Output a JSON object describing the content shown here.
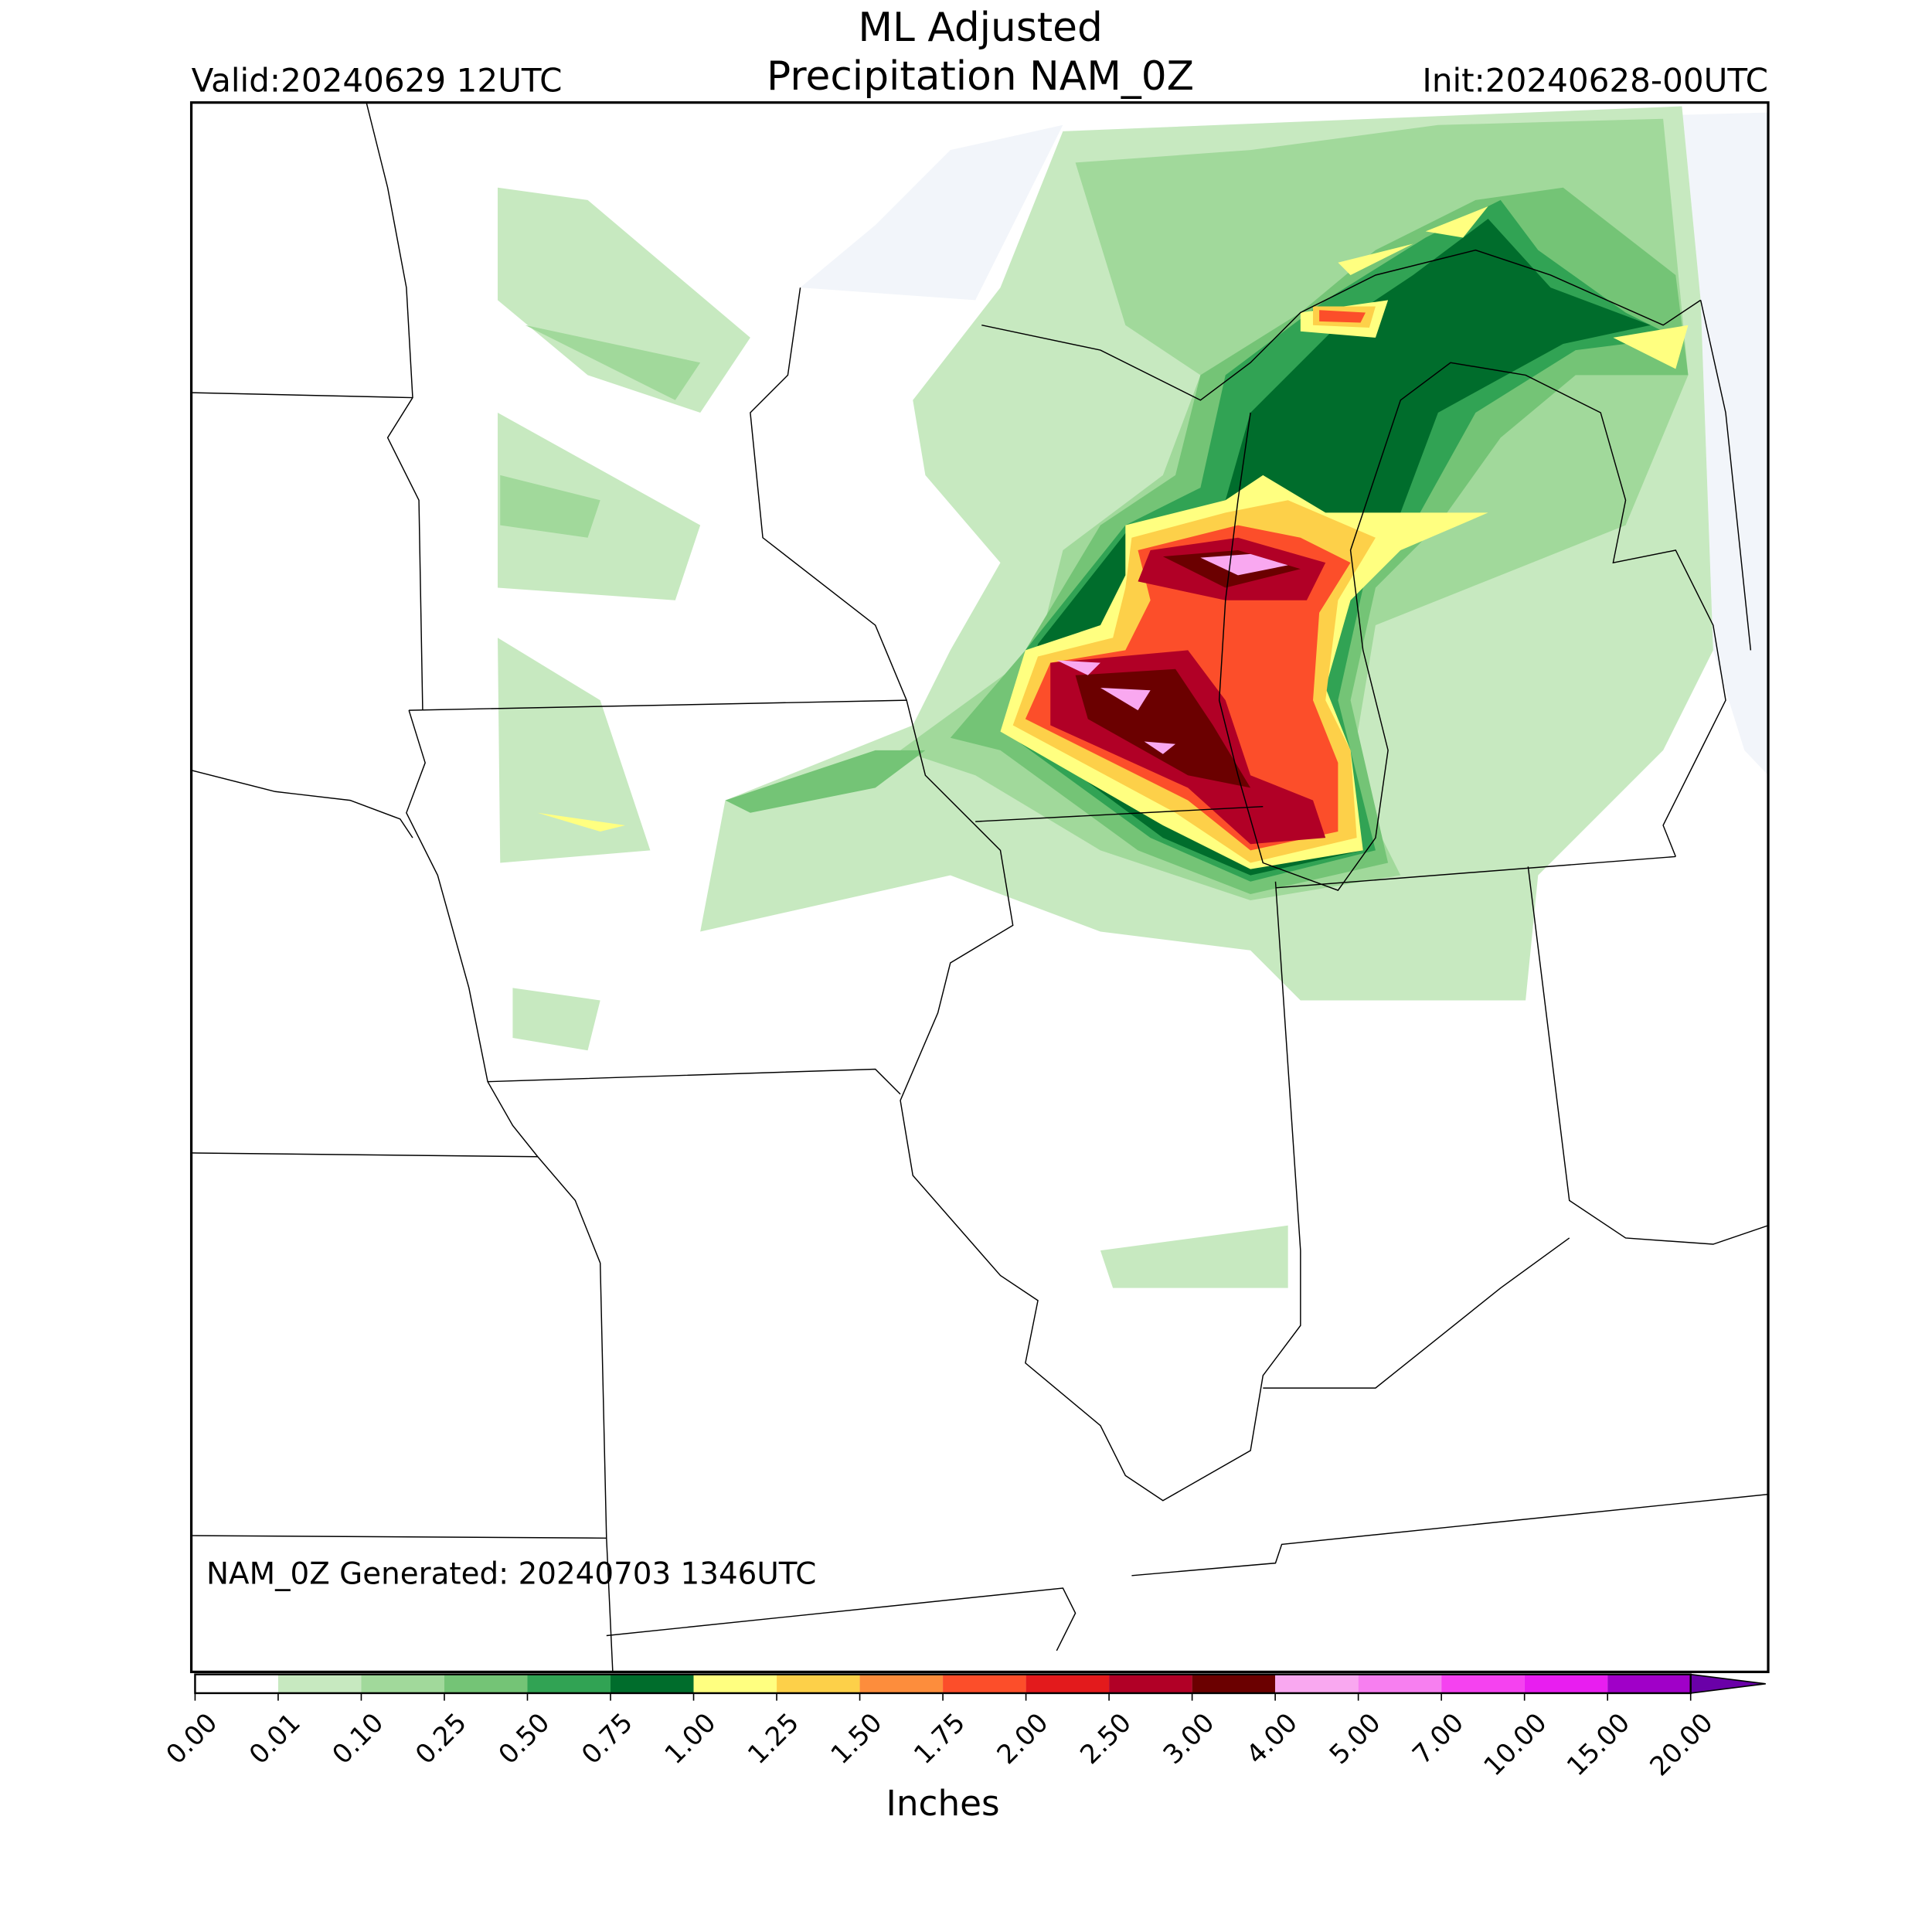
{
  "title": [
    "ML Adjusted",
    "Precipitation NAM_0Z"
  ],
  "valid": "Valid:20240629 12UTC",
  "init": "Init:20240628-00UTC",
  "generated": "NAM_0Z Generated: 20240703 1346UTC",
  "colorbar": {
    "label": "Inches",
    "ticks": [
      {
        "value": 0,
        "label": "0.00"
      },
      0.01,
      {
        "value": 0.1,
        "label": "0.10"
      },
      0.25,
      {
        "value": 0.5,
        "label": "0.50"
      },
      0.75,
      {
        "value": 1,
        "label": "1.00"
      },
      1.25,
      {
        "value": 1.5,
        "label": "1.50"
      },
      1.75,
      {
        "value": 2,
        "label": "2.00"
      },
      {
        "value": 2.5,
        "label": "2.50"
      },
      {
        "value": 3,
        "label": "3.00"
      },
      {
        "value": 4,
        "label": "4.00"
      },
      {
        "value": 5,
        "label": "5.00"
      },
      {
        "value": 7,
        "label": "7.00"
      },
      {
        "value": 10,
        "label": "10.00"
      },
      {
        "value": 15,
        "label": "15.00"
      },
      {
        "value": 20,
        "label": "20.00"
      }
    ],
    "colors": [
      "#ffffff",
      "#c7e9c0",
      "#a1d99b",
      "#74c476",
      "#31a354",
      "#006d2c",
      "#ffff80",
      "#fdd049",
      "#fd8d3c",
      "#fc4e2a",
      "#e31a1c",
      "#b10026",
      "#6b0000",
      "#f9a8f0",
      "#f77ff0",
      "#f542f0",
      "#e81ef0",
      "#a000c8"
    ],
    "extend_color": "#6a00a8"
  }
}
